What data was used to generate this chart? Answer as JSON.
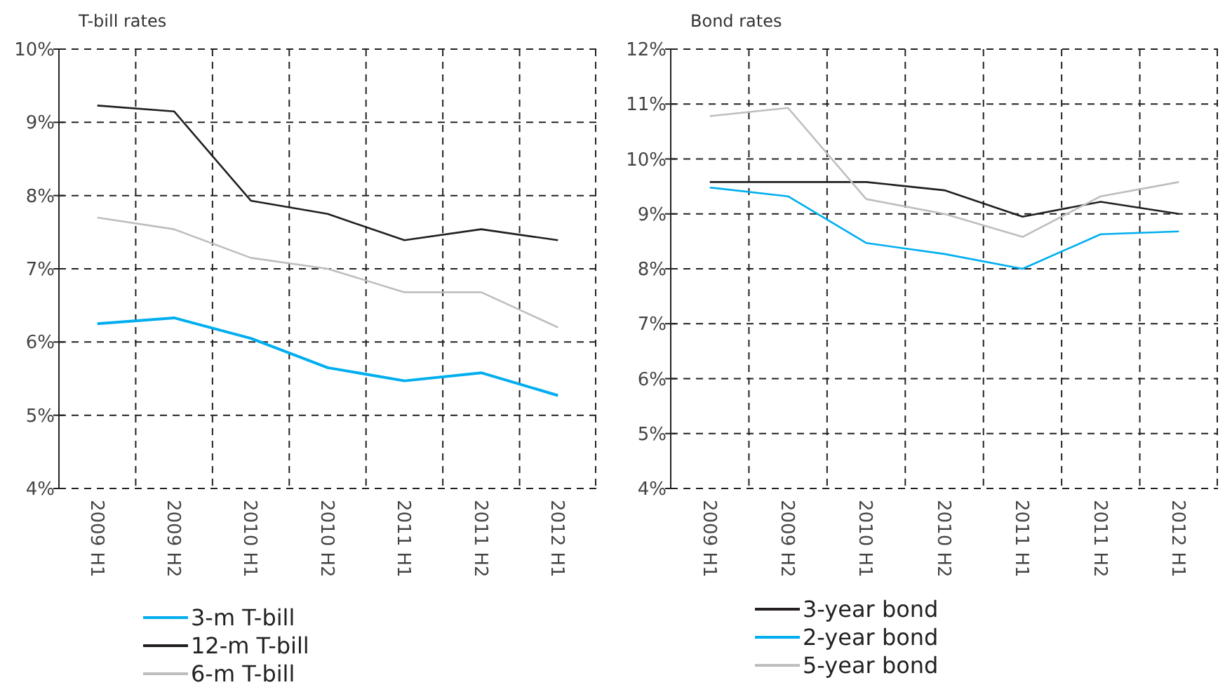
{
  "chart_data": [
    {
      "type": "line",
      "title": "T-bill rates",
      "categories": [
        "2009 H1",
        "2009 H2",
        "2010 H1",
        "2010 H2",
        "2011 H1",
        "2011 H2",
        "2012 H1"
      ],
      "series": [
        {
          "name": "3-m T-bill",
          "color": "#00aeef",
          "values": [
            6.25,
            6.33,
            6.05,
            5.65,
            5.47,
            5.58,
            5.27
          ]
        },
        {
          "name": "12-m T-bill",
          "color": "#231f20",
          "values": [
            9.23,
            9.15,
            7.93,
            7.75,
            7.39,
            7.54,
            7.39
          ]
        },
        {
          "name": "6-m T-bill",
          "color": "#bcbec0",
          "values": [
            7.7,
            7.54,
            7.15,
            7.0,
            6.68,
            6.68,
            6.2
          ]
        }
      ],
      "ylim": [
        4,
        10
      ],
      "yticks": [
        {
          "value": 4,
          "label": "4%"
        },
        {
          "value": 5,
          "label": "5%"
        },
        {
          "value": 6,
          "label": "6%"
        },
        {
          "value": 7,
          "label": "7%"
        },
        {
          "value": 8,
          "label": "8%"
        },
        {
          "value": 9,
          "label": "9%"
        },
        {
          "value": 10,
          "label": "10%"
        }
      ],
      "grid": true,
      "legend": "bottom",
      "line_style": "solid"
    },
    {
      "type": "line",
      "title": "Bond rates",
      "categories": [
        "2009 H1",
        "2009 H2",
        "2010 H1",
        "2010 H2",
        "2011 H1",
        "2011 H2",
        "2012 H1"
      ],
      "series": [
        {
          "name": "3-year bond",
          "color": "#231f20",
          "values": [
            9.58,
            9.58,
            9.58,
            9.43,
            8.95,
            9.22,
            9.0
          ]
        },
        {
          "name": "2-year bond",
          "color": "#00aeef",
          "values": [
            9.48,
            9.32,
            8.47,
            8.27,
            8.0,
            8.63,
            8.68
          ]
        },
        {
          "name": "5-year bond",
          "color": "#bcbec0",
          "values": [
            10.78,
            10.93,
            9.27,
            9.0,
            8.58,
            9.32,
            9.58
          ]
        }
      ],
      "ylim": [
        4,
        12
      ],
      "yticks": [
        {
          "value": 4,
          "label": "4%"
        },
        {
          "value": 5,
          "label": "5%"
        },
        {
          "value": 6,
          "label": "6%"
        },
        {
          "value": 7,
          "label": "7%"
        },
        {
          "value": 8,
          "label": "8%"
        },
        {
          "value": 9,
          "label": "9%"
        },
        {
          "value": 10,
          "label": "10%"
        },
        {
          "value": 11,
          "label": "11%"
        },
        {
          "value": 12,
          "label": "12%"
        }
      ],
      "grid": true,
      "legend": "bottom",
      "line_style": "solid"
    }
  ]
}
